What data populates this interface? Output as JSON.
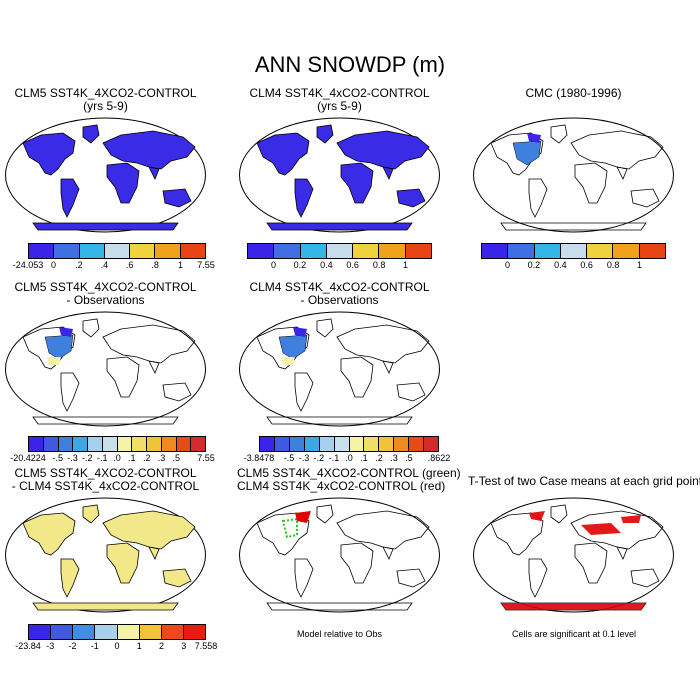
{
  "page_title": "ANN SNOWDP (m)",
  "colors": {
    "levels9": [
      "#3a24e8",
      "#3f6fe2",
      "#35b6e8",
      "#c7dcec",
      "#f0d23c",
      "#f0a21c",
      "#e84414",
      "#d22b2b"
    ],
    "levels12": [
      "#3a24e8",
      "#3f5ae0",
      "#3f7fde",
      "#3fa6e4",
      "#a6d0ec",
      "#c8e0ec",
      "#f4f2a6",
      "#f0de6a",
      "#f0c43a",
      "#f08a1e",
      "#e84a16",
      "#d22b2b"
    ],
    "diff": [
      "#3a24e8",
      "#3f5ae0",
      "#3f8ee4",
      "#a6d0ec",
      "#f4f2a6",
      "#f0c43a",
      "#f0481c",
      "#ea1a14",
      "#d22b2b"
    ],
    "land_positive_snow": "#3a24e8"
  },
  "chart_data": [
    {
      "type": "map",
      "id": "clm5_control",
      "title_line1": "CLM5 SST4K_4XCO2-CONTROL",
      "title_line2": "(yrs 5-9)",
      "variable": "SNOWDP",
      "units": "m",
      "colorbar_labels": [
        "-24.053",
        "0",
        ".2",
        ".4",
        ".6",
        ".8",
        "1",
        "7.55"
      ],
      "colorbar_min": -24.053,
      "colorbar_max": 7.55
    },
    {
      "type": "map",
      "id": "clm4_control",
      "title_line1": "CLM4 SST4K_4xCO2-CONTROL",
      "title_line2": "(yrs 5-9)",
      "variable": "SNOWDP",
      "units": "m",
      "colorbar_labels": [
        "0",
        "0.2",
        "0.4",
        "0.6",
        "0.8",
        "1"
      ]
    },
    {
      "type": "map",
      "id": "cmc_obs",
      "title_line1": "CMC (1980-1996)",
      "title_line2": "",
      "variable": "SNOWDP",
      "units": "m",
      "colorbar_labels": [
        "0",
        "0.2",
        "0.4",
        "0.6",
        "0.8",
        "1"
      ]
    },
    {
      "type": "map",
      "id": "clm5_minus_obs",
      "title_line1": "CLM5 SST4K_4XCO2-CONTROL",
      "title_line2": "- Observations",
      "colorbar_labels": [
        "-20.4224",
        "-.5",
        "-.3",
        "-.2",
        "-.1",
        ".0",
        ".1",
        ".2",
        ".3",
        ".5",
        "7.55"
      ],
      "colorbar_min": -20.4224,
      "colorbar_max": 7.55
    },
    {
      "type": "map",
      "id": "clm4_minus_obs",
      "title_line1": "CLM4 SST4K_4xCO2-CONTROL",
      "title_line2": "- Observations",
      "colorbar_labels": [
        "-3.8478",
        "-.5",
        "-.3",
        "-.2",
        "-.1",
        ".0",
        ".1",
        ".2",
        ".3",
        ".5",
        ".8622"
      ],
      "colorbar_min": -3.8478,
      "colorbar_max": 0.8622
    },
    {
      "type": "map",
      "id": "clm5_minus_clm4",
      "title_line1": "CLM5 SST4K_4XCO2-CONTROL",
      "title_line2": "- CLM4 SST4K_4xCO2-CONTROL",
      "colorbar_labels": [
        "-23.84",
        "-3",
        "-2",
        "-1",
        "0",
        "1",
        "2",
        "3",
        "7.558"
      ],
      "colorbar_min": -23.84,
      "colorbar_max": 7.558
    },
    {
      "type": "map",
      "id": "model_relative_obs",
      "title_line1": "CLM5 SST4K_4XCO2-CONTROL (green)",
      "title_line2": "CLM4 SST4K_4xCO2-CONTROL (red)",
      "caption": "Model relative to Obs",
      "series": [
        {
          "name": "CLM5 SST4K_4XCO2-CONTROL",
          "color": "#1ec81e"
        },
        {
          "name": "CLM4 SST4K_4xCO2-CONTROL",
          "color": "#e00000"
        }
      ]
    },
    {
      "type": "map",
      "id": "ttest",
      "title_line1": "T-Test of two Case means at each grid point",
      "title_line2": "",
      "caption": "Cells are significant at 0.1 level",
      "significance_level": 0.1,
      "marker_color": "#e00000"
    }
  ]
}
